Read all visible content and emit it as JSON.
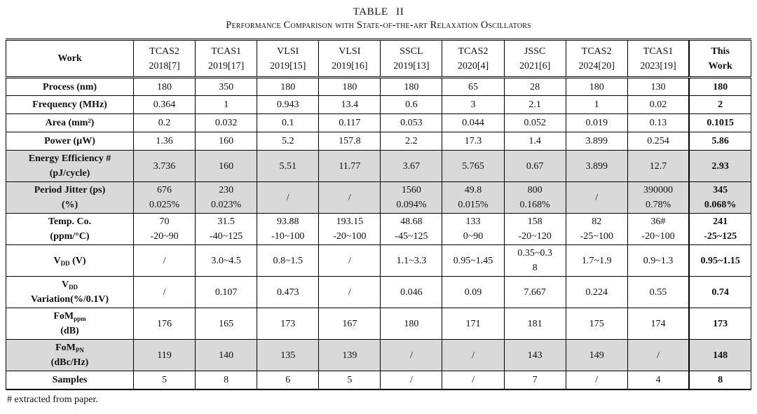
{
  "title": "TABLE II",
  "subtitle": "Performance Comparison with State-of-the-art Relaxation Oscillators",
  "footnote": "# extracted from paper.",
  "colors": {
    "shaded_row": "#d9d9d9",
    "border": "#000000",
    "background": "#ffffff"
  },
  "table": {
    "columns": [
      "Work",
      "TCAS2\n2018[7]",
      "TCAS1\n2019[17]",
      "VLSI\n2019[15]",
      "VLSI\n2019[16]",
      "SSCL\n2019[13]",
      "TCAS2\n2020[4]",
      "JSSC\n2021[6]",
      "TCAS2\n2024[20]",
      "TCAS1\n2023[19]",
      "This\nWork"
    ],
    "rows": [
      {
        "name": "process",
        "shaded": false,
        "label": [
          [
            {
              "t": "Process (nm)"
            }
          ]
        ],
        "values": [
          "180",
          "350",
          "180",
          "180",
          "180",
          "65",
          "28",
          "180",
          "130",
          "180"
        ]
      },
      {
        "name": "frequency",
        "shaded": false,
        "label": [
          [
            {
              "t": "Frequency (MHz)"
            }
          ]
        ],
        "values": [
          "0.364",
          "1",
          "0.943",
          "13.4",
          "0.6",
          "3",
          "2.1",
          "1",
          "0.02",
          "2"
        ]
      },
      {
        "name": "area",
        "shaded": false,
        "label": [
          [
            {
              "t": "Area (mm²)"
            }
          ]
        ],
        "values": [
          "0.2",
          "0.032",
          "0.1",
          "0.117",
          "0.053",
          "0.044",
          "0.052",
          "0.019",
          "0.13",
          "0.1015"
        ]
      },
      {
        "name": "power",
        "shaded": false,
        "label": [
          [
            {
              "t": "Power (µW)"
            }
          ]
        ],
        "values": [
          "1.36",
          "160",
          "5.2",
          "157.8",
          "2.2",
          "17.3",
          "1.4",
          "3.899",
          "0.254",
          "5.86"
        ]
      },
      {
        "name": "energy-efficiency",
        "shaded": true,
        "label": [
          [
            {
              "t": "Energy Efficiency #"
            }
          ],
          [
            {
              "t": "(pJ/cycle)"
            }
          ]
        ],
        "values": [
          "3.736",
          "160",
          "5.51",
          "11.77",
          "3.67",
          "5.765",
          "0.67",
          "3.899",
          "12.7",
          "2.93"
        ]
      },
      {
        "name": "period-jitter",
        "shaded": true,
        "label": [
          [
            {
              "t": "Period Jitter (ps)"
            }
          ],
          [
            {
              "t": "(%)"
            }
          ]
        ],
        "values": [
          "676\n0.025%",
          "230\n0.023%",
          "/",
          "/",
          "1560\n0.094%",
          "49.8\n0.015%",
          "800\n0.168%",
          "/",
          "390000\n0.78%",
          "345\n0.068%"
        ]
      },
      {
        "name": "temp-co",
        "shaded": false,
        "label": [
          [
            {
              "t": "Temp. Co."
            }
          ],
          [
            {
              "t": "(ppm/°C)"
            }
          ]
        ],
        "values": [
          "70\n-20~90",
          "31.5\n-40~125",
          "93.88\n-10~100",
          "193.15\n-20~100",
          "48.68\n-45~125",
          "133\n0~90",
          "158\n-20~120",
          "82\n-25~100",
          "36#\n-20~100",
          "241\n-25~125"
        ]
      },
      {
        "name": "vdd",
        "shaded": false,
        "label": [
          [
            {
              "t": "V"
            },
            {
              "sub": "DD"
            },
            {
              "t": " (V)"
            }
          ]
        ],
        "values": [
          "/",
          "3.0~4.5",
          "0.8~1.5",
          "/",
          "1.1~3.3",
          "0.95~1.45",
          "0.35~0.3\n8",
          "1.7~1.9",
          "0.9~1.3",
          "0.95~1.15"
        ]
      },
      {
        "name": "vdd-variation",
        "shaded": false,
        "label": [
          [
            {
              "t": "V"
            },
            {
              "sub": "DD"
            }
          ],
          [
            {
              "t": "Variation(%/0.1V)"
            }
          ]
        ],
        "values": [
          "/",
          "0.107",
          "0.473",
          "/",
          "0.046",
          "0.09",
          "7.667",
          "0.224",
          "0.55",
          "0.74"
        ]
      },
      {
        "name": "fom-ppm",
        "shaded": false,
        "label": [
          [
            {
              "t": "FoM"
            },
            {
              "sub": "ppm"
            }
          ],
          [
            {
              "t": "(dB)"
            }
          ]
        ],
        "values": [
          "176",
          "165",
          "173",
          "167",
          "180",
          "171",
          "181",
          "175",
          "174",
          "173"
        ]
      },
      {
        "name": "fom-pn",
        "shaded": true,
        "label": [
          [
            {
              "t": "FoM"
            },
            {
              "sub": "PN"
            }
          ],
          [
            {
              "t": "(dBc/Hz)"
            }
          ]
        ],
        "values": [
          "119",
          "140",
          "135",
          "139",
          "/",
          "/",
          "143",
          "149",
          "/",
          "148"
        ]
      },
      {
        "name": "samples",
        "shaded": false,
        "label": [
          [
            {
              "t": "Samples"
            }
          ]
        ],
        "values": [
          "5",
          "8",
          "6",
          "5",
          "/",
          "/",
          "7",
          "/",
          "4",
          "8"
        ]
      }
    ]
  }
}
